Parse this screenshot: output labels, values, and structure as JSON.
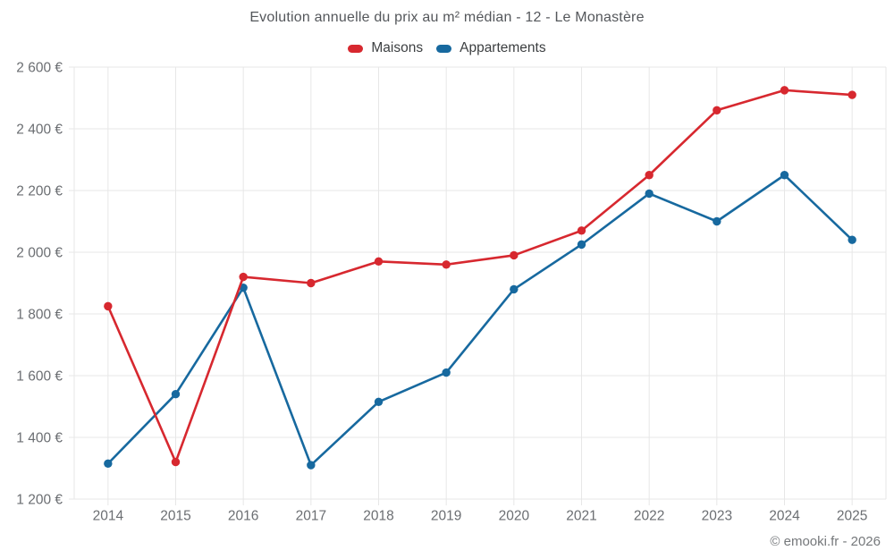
{
  "title": "Evolution annuelle du prix au m² médian - 12 - Le Monastère",
  "footer": "© emooki.fr - 2026",
  "colors": {
    "background": "#ffffff",
    "maisons": "#d7282f",
    "appartements": "#17699f",
    "grid": "#e7e7e7",
    "title_text": "#54575b",
    "legend_text": "#3c3f41",
    "tick_text": "#6b6e72",
    "footer_text": "#75787b"
  },
  "chart_data": {
    "type": "line",
    "title": "Evolution annuelle du prix au m² médian - 12 - Le Monastère",
    "categories": [
      "2014",
      "2015",
      "2016",
      "2017",
      "2018",
      "2019",
      "2020",
      "2021",
      "2022",
      "2023",
      "2024",
      "2025"
    ],
    "series": [
      {
        "name": "Maisons",
        "color": "#d7282f",
        "values": [
          1825,
          1320,
          1920,
          1900,
          1970,
          1960,
          1990,
          2070,
          2250,
          2460,
          2525,
          2510
        ]
      },
      {
        "name": "Appartements",
        "color": "#17699f",
        "values": [
          1315,
          1540,
          1885,
          1310,
          1515,
          1610,
          1880,
          2025,
          2190,
          2100,
          2250,
          2040
        ]
      }
    ],
    "xlabel": "",
    "ylabel": "",
    "ylim": [
      1200,
      2600
    ],
    "ytick_step": 200,
    "ytick_suffix": " €",
    "grid": true,
    "legend_position": "top",
    "marker": "circle"
  }
}
